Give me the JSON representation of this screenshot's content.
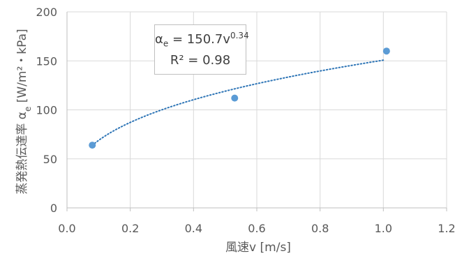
{
  "chart_data": {
    "type": "scatter",
    "title": "",
    "xlabel": "風速v [m/s]",
    "ylabel": {
      "prefix": "蒸発熱伝達率 ",
      "symbol": "α",
      "subscript": "e",
      "units": " [W/m²・kPa]"
    },
    "xlim": [
      0.0,
      1.2
    ],
    "ylim": [
      0,
      200
    ],
    "xticks": [
      "0.0",
      "0.2",
      "0.4",
      "0.6",
      "0.8",
      "1.0",
      "1.2"
    ],
    "yticks": [
      "0",
      "50",
      "100",
      "150",
      "200"
    ],
    "grid": true,
    "series": [
      {
        "x": [
          0.08,
          0.53,
          1.01
        ],
        "y": [
          64,
          112,
          160
        ],
        "color": "#5b9bd5"
      }
    ],
    "trendline": {
      "type": "power",
      "coefficient": 150.7,
      "exponent": 0.34,
      "x_range": [
        0.08,
        1.0
      ],
      "style": "dotted",
      "color": "#2e75b6"
    },
    "annotation": {
      "equation": {
        "symbol": "α",
        "subscript": "e",
        "rhs": " = 150.7v",
        "superscript": "0.34"
      },
      "r_squared": "R² = 0.98"
    }
  }
}
